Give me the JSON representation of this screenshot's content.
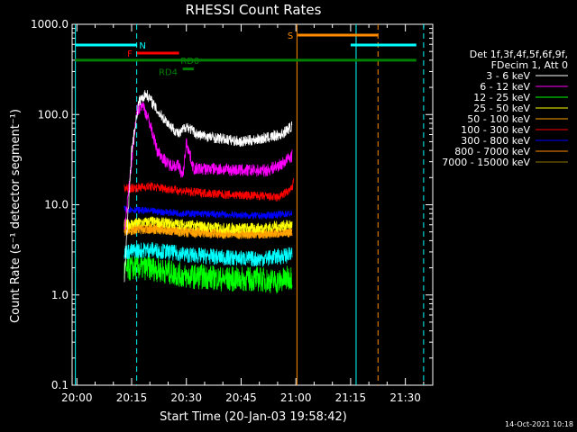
{
  "chart_data": {
    "type": "line",
    "title": "RHESSI Count Rates",
    "xlabel": "Start Time (20-Jan-03 19:58:42)",
    "ylabel": "Count Rate (s⁻¹ detector segment⁻¹)",
    "yscale": "log",
    "ylim": [
      0.1,
      1000
    ],
    "xlim_minutes_after_2000": [
      -1.3,
      36.5
    ],
    "x_ticks": [
      {
        "m": 0,
        "label": "20:00"
      },
      {
        "m": 15,
        "label": "20:15"
      },
      {
        "m": 30,
        "label": "20:30"
      },
      {
        "m": 45,
        "label": "20:45"
      },
      {
        "m": 60,
        "label": "21:00"
      },
      {
        "m": 75,
        "label": "21:15"
      },
      {
        "m": 90,
        "label": "21:30"
      }
    ],
    "y_ticks": [
      {
        "v": 0.1,
        "label": "0.1"
      },
      {
        "v": 1,
        "label": "1.0"
      },
      {
        "v": 10,
        "label": "10.0"
      },
      {
        "v": 100,
        "label": "100.0"
      },
      {
        "v": 1000,
        "label": "1000.0"
      }
    ],
    "legend": {
      "header": [
        "Det 1f,3f,4f,5f,6f,9f,",
        "FDecim 1, Att 0"
      ],
      "placement": "right"
    },
    "series": [
      {
        "name": "3 - 6 keV",
        "color": "#ffffff",
        "x": [
          13,
          15,
          17,
          19,
          20.5,
          22,
          25,
          28,
          30,
          33,
          38,
          45,
          52,
          56,
          59
        ],
        "y": [
          1.5,
          40,
          140,
          170,
          140,
          110,
          80,
          60,
          75,
          60,
          55,
          50,
          55,
          60,
          75
        ]
      },
      {
        "name": "6 - 12 keV",
        "color": "#ff00ff",
        "x": [
          13,
          15,
          16.5,
          18,
          20,
          22,
          25,
          28,
          29,
          30,
          32,
          38,
          45,
          52,
          56,
          59
        ],
        "y": [
          5,
          30,
          110,
          130,
          80,
          40,
          28,
          27,
          20,
          50,
          25,
          25,
          24,
          24,
          28,
          35
        ]
      },
      {
        "name": "12 - 25 keV",
        "color": "#00ff00",
        "x": [
          13,
          15,
          20,
          25,
          30,
          35,
          40,
          45,
          50,
          55,
          59
        ],
        "y": [
          1.8,
          2.0,
          2.0,
          1.8,
          1.6,
          1.6,
          1.5,
          1.5,
          1.5,
          1.4,
          1.6
        ]
      },
      {
        "name": "25 - 50 keV",
        "color": "#ffff00",
        "x": [
          13,
          20,
          30,
          40,
          50,
          59
        ],
        "y": [
          6,
          6.5,
          6.0,
          5.5,
          5.5,
          6
        ]
      },
      {
        "name": "50 - 100 keV",
        "color": "#ffa500",
        "x": [
          13,
          20,
          30,
          40,
          50,
          59
        ],
        "y": [
          5.2,
          5.5,
          5.0,
          4.8,
          4.8,
          5.0
        ]
      },
      {
        "name": "100 - 300 keV",
        "color": "#ff0000",
        "x": [
          13,
          20,
          30,
          40,
          50,
          55,
          59,
          59.5
        ],
        "y": [
          15,
          16,
          14,
          13,
          12.5,
          12,
          15,
          22
        ]
      },
      {
        "name": "300 - 800 keV",
        "color": "#0000ff",
        "x": [
          13,
          20,
          30,
          40,
          50,
          59
        ],
        "y": [
          9,
          8.5,
          8.0,
          7.8,
          7.5,
          8.0
        ]
      },
      {
        "name": "800 - 7000 keV",
        "color": "#ff8c00",
        "x": [
          13,
          20,
          30,
          40,
          50,
          59
        ],
        "y": [
          5.5,
          5.4,
          5.0,
          4.8,
          4.7,
          5.0
        ]
      },
      {
        "name": "7000 - 15000 keV",
        "color": "#8b7500",
        "x": [],
        "y": []
      },
      {
        "name": "",
        "color": "#00ffff",
        "x": [
          13,
          20,
          30,
          40,
          50,
          59
        ],
        "y": [
          3.0,
          3.2,
          2.8,
          2.6,
          2.5,
          2.8
        ]
      }
    ],
    "flag_bars": [
      {
        "label": "N",
        "color": "#00ffff",
        "x0": -0.5,
        "x1": 16.5,
        "y": 590,
        "label_x": 18,
        "label_y": 590
      },
      {
        "label": "",
        "color": "#00ffff",
        "x0": 75,
        "x1": 93,
        "y": 590
      },
      {
        "label": "F",
        "color": "#ff0000",
        "x0": 16.5,
        "x1": 28,
        "y": 480,
        "label_x": 14.5,
        "label_y": 480
      },
      {
        "label": "S",
        "color": "#ff8c00",
        "x0": 60.5,
        "x1": 82.5,
        "y": 760,
        "label_x": 58.5,
        "label_y": 760
      },
      {
        "label": "RD0",
        "color": "#008000",
        "x0": -0.5,
        "x1": 93,
        "y": 400,
        "label_x": 31,
        "label_y": 400
      },
      {
        "label": "RD4",
        "color": "#008000",
        "x0": 29,
        "x1": 32,
        "y": 320,
        "label_x": 25,
        "label_y": 300
      }
    ],
    "vlines": [
      {
        "x": -0.4,
        "color": "#00ffff",
        "style": "solid"
      },
      {
        "x": 16.4,
        "color": "#00ffff",
        "style": "dashed"
      },
      {
        "x": 60.3,
        "color": "#ff8c00",
        "style": "solid"
      },
      {
        "x": 76.5,
        "color": "#00ffff",
        "style": "solid"
      },
      {
        "x": 82.5,
        "color": "#ff8c00",
        "style": "dashed"
      },
      {
        "x": 95.0,
        "color": "#00ffff",
        "style": "dashed"
      }
    ],
    "footer_timestamp": "14-Oct-2021 10:18"
  }
}
